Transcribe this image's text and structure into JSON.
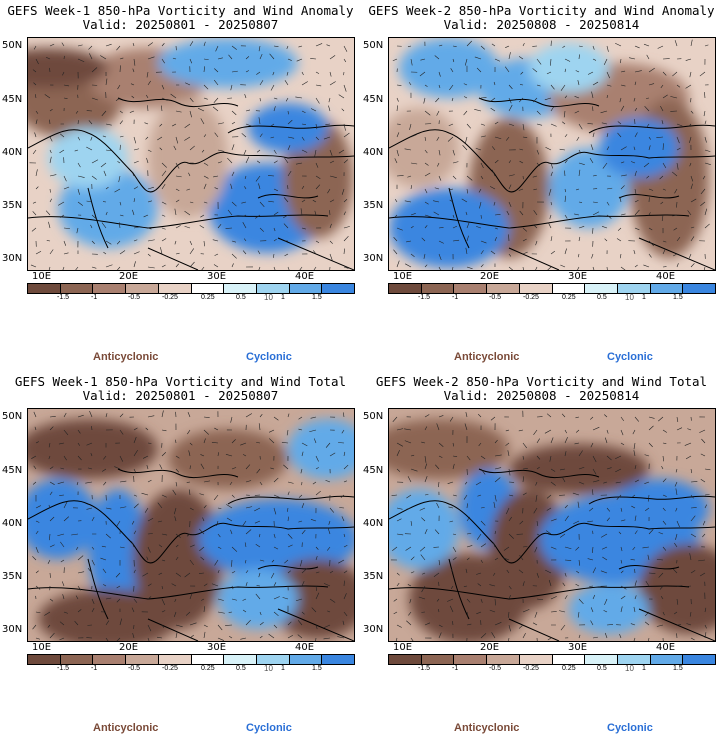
{
  "panels": [
    {
      "title": "GEFS Week-1 850-hPa Vorticity and Wind Anomaly",
      "valid": "Valid: 20250801 - 20250807"
    },
    {
      "title": "GEFS Week-2 850-hPa Vorticity and Wind Anomaly",
      "valid": "Valid: 20250808 - 20250814"
    },
    {
      "title": "GEFS Week-1 850-hPa Vorticity and Wind Total",
      "valid": "Valid: 20250801 - 20250807"
    },
    {
      "title": "GEFS Week-2 850-hPa Vorticity and Wind Total",
      "valid": "Valid: 20250808 - 20250814"
    }
  ],
  "lat_labels": [
    "50N",
    "45N",
    "40N",
    "35N",
    "30N"
  ],
  "lon_labels": [
    "10E",
    "20E",
    "30E",
    "40E"
  ],
  "colorbar": {
    "ticks": [
      "-1.5",
      "-1",
      "-0.5",
      "-0.25",
      "0.25",
      "0.5",
      "1",
      "1.5"
    ],
    "colors": [
      "#6e4a3c",
      "#8c6553",
      "#a98070",
      "#c8a898",
      "#e8d2c6",
      "#ffffff",
      "#d8f2f8",
      "#9ed4f0",
      "#62aae8",
      "#3a86e0"
    ],
    "vector_ref": "10"
  },
  "legend": {
    "anticyclonic": "Anticyclonic",
    "cyclonic": "Cyclonic"
  }
}
